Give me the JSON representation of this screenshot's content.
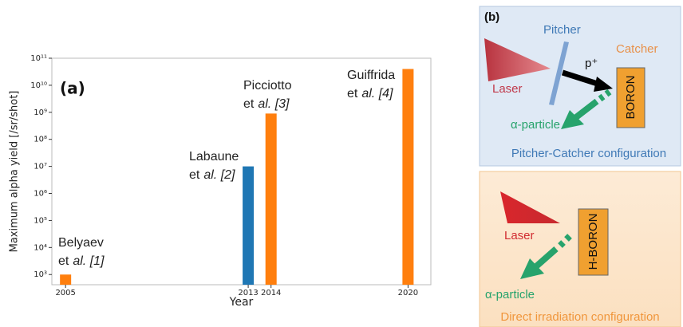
{
  "chart_data": {
    "type": "bar",
    "panel_label": "(a)",
    "x_label": "Year",
    "y_label": "Maximum alpha yield [/sr/shot]",
    "x": [
      2005,
      2013,
      2014,
      2020
    ],
    "values": [
      1000,
      10000000,
      900000000,
      40000000000
    ],
    "colors": [
      "#ff7f0e",
      "#1f77b4",
      "#ff7f0e",
      "#ff7f0e"
    ],
    "xlim": [
      2004.4,
      2021
    ],
    "xticks": [
      2005,
      2013,
      2014,
      2020
    ],
    "ylim": [
      420,
      100000000000
    ],
    "log_y": true,
    "grid": false,
    "yticks": [
      {
        "value": 1000,
        "label": "10³"
      },
      {
        "value": 10000,
        "label": "10⁴"
      },
      {
        "value": 100000,
        "label": "10⁵"
      },
      {
        "value": 1000000,
        "label": "10⁶"
      },
      {
        "value": 10000000,
        "label": "10⁷"
      },
      {
        "value": 100000000,
        "label": "10⁸"
      },
      {
        "value": 1000000000,
        "label": "10⁹"
      },
      {
        "value": 10000000000,
        "label": "10¹⁰"
      },
      {
        "value": 100000000000,
        "label": "10¹¹"
      }
    ],
    "annotations": [
      {
        "name": "Belyaev",
        "et": "et",
        "ref": "al. [1]"
      },
      {
        "name": "Labaune",
        "et": "et",
        "ref": "al. [2]"
      },
      {
        "name": "Picciotto",
        "et": "et",
        "ref": "al. [3]"
      },
      {
        "name": "Guiffrida",
        "et": "et",
        "ref": "al. [4]"
      }
    ]
  },
  "diagram": {
    "label": "(b)",
    "top": {
      "pitcher": "Pitcher",
      "catcher": "Catcher",
      "laser": "Laser",
      "proton": "p⁺",
      "alpha": "α-particle",
      "target": "BORON",
      "caption": "Pitcher-Catcher configuration"
    },
    "bottom": {
      "laser": "Laser",
      "target": "H-BORON",
      "alpha": "α-particle",
      "caption": "Direct irradiation configuration"
    }
  }
}
